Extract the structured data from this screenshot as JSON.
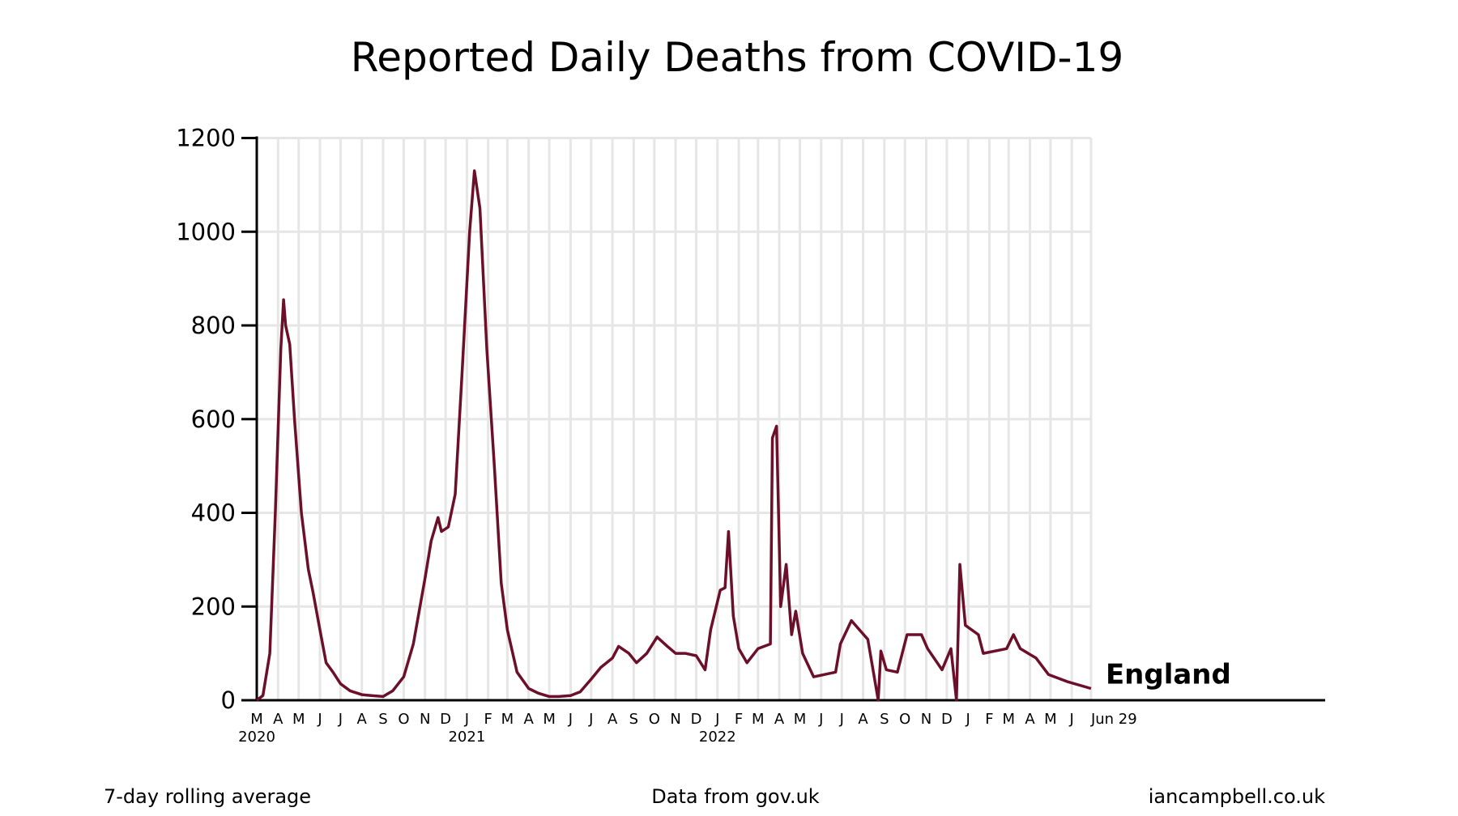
{
  "chart_data": {
    "type": "line",
    "title": "Reported Daily Deaths from COVID-19",
    "series": [
      {
        "name": "England",
        "color": "#6b0f2a",
        "x": [
          "2020-03-01",
          "2020-03-10",
          "2020-03-20",
          "2020-03-28",
          "2020-04-05",
          "2020-04-09",
          "2020-04-12",
          "2020-04-18",
          "2020-04-25",
          "2020-05-05",
          "2020-05-15",
          "2020-05-22",
          "2020-06-01",
          "2020-06-10",
          "2020-06-20",
          "2020-07-01",
          "2020-07-15",
          "2020-08-01",
          "2020-08-15",
          "2020-09-01",
          "2020-09-15",
          "2020-10-01",
          "2020-10-15",
          "2020-11-01",
          "2020-11-10",
          "2020-11-20",
          "2020-11-25",
          "2020-12-05",
          "2020-12-15",
          "2020-12-25",
          "2021-01-05",
          "2021-01-12",
          "2021-01-20",
          "2021-01-30",
          "2021-02-10",
          "2021-02-20",
          "2021-03-01",
          "2021-03-15",
          "2021-04-01",
          "2021-04-15",
          "2021-05-01",
          "2021-05-15",
          "2021-06-01",
          "2021-06-15",
          "2021-07-01",
          "2021-07-15",
          "2021-08-01",
          "2021-08-10",
          "2021-08-25",
          "2021-09-05",
          "2021-09-20",
          "2021-10-05",
          "2021-10-20",
          "2021-11-01",
          "2021-11-15",
          "2021-12-01",
          "2021-12-14",
          "2021-12-22",
          "2022-01-05",
          "2022-01-12",
          "2022-01-17",
          "2022-01-24",
          "2022-02-01",
          "2022-02-13",
          "2022-03-01",
          "2022-03-19",
          "2022-03-22",
          "2022-03-28",
          "2022-04-03",
          "2022-04-11",
          "2022-04-19",
          "2022-04-25",
          "2022-05-05",
          "2022-05-21",
          "2022-06-22",
          "2022-06-29",
          "2022-07-15",
          "2022-08-08",
          "2022-08-23",
          "2022-08-27",
          "2022-09-04",
          "2022-09-20",
          "2022-10-04",
          "2022-10-25",
          "2022-11-03",
          "2022-11-24",
          "2022-12-07",
          "2022-12-15",
          "2022-12-20",
          "2022-12-28",
          "2023-01-16",
          "2023-01-23",
          "2023-02-26",
          "2023-03-08",
          "2023-03-18",
          "2023-04-10",
          "2023-04-28",
          "2023-05-25",
          "2023-06-29"
        ],
        "values": [
          0,
          10,
          100,
          400,
          750,
          855,
          800,
          760,
          600,
          400,
          280,
          230,
          150,
          80,
          60,
          35,
          20,
          12,
          10,
          8,
          20,
          50,
          120,
          260,
          340,
          390,
          360,
          370,
          440,
          700,
          1000,
          1130,
          1050,
          750,
          500,
          250,
          150,
          60,
          25,
          15,
          8,
          8,
          10,
          18,
          45,
          70,
          90,
          115,
          100,
          80,
          100,
          135,
          115,
          100,
          100,
          95,
          65,
          150,
          235,
          240,
          360,
          180,
          110,
          80,
          110,
          120,
          560,
          585,
          200,
          290,
          140,
          190,
          100,
          50,
          60,
          120,
          170,
          130,
          0,
          105,
          65,
          60,
          140,
          140,
          110,
          65,
          110,
          0,
          290,
          160,
          140,
          100,
          110,
          140,
          110,
          90,
          55,
          40,
          25
        ]
      }
    ],
    "xlim": [
      "2020-03-01",
      "2024-06-04"
    ],
    "xticks": [
      {
        "value": "2020-03-01",
        "label": "M"
      },
      {
        "value": "2020-04-01",
        "label": "A"
      },
      {
        "value": "2020-05-01",
        "label": "M"
      },
      {
        "value": "2020-06-01",
        "label": "J"
      },
      {
        "value": "2020-07-01",
        "label": "J"
      },
      {
        "value": "2020-08-01",
        "label": "A"
      },
      {
        "value": "2020-09-01",
        "label": "S"
      },
      {
        "value": "2020-10-01",
        "label": "O"
      },
      {
        "value": "2020-11-01",
        "label": "N"
      },
      {
        "value": "2020-12-01",
        "label": "D"
      },
      {
        "value": "2021-01-01",
        "label": "J"
      },
      {
        "value": "2021-02-01",
        "label": "F"
      },
      {
        "value": "2021-03-01",
        "label": "M"
      },
      {
        "value": "2021-04-01",
        "label": "A"
      },
      {
        "value": "2021-05-01",
        "label": "M"
      },
      {
        "value": "2021-06-01",
        "label": "J"
      },
      {
        "value": "2021-07-01",
        "label": "J"
      },
      {
        "value": "2021-08-01",
        "label": "A"
      },
      {
        "value": "2021-09-01",
        "label": "S"
      },
      {
        "value": "2021-10-01",
        "label": "O"
      },
      {
        "value": "2021-11-01",
        "label": "N"
      },
      {
        "value": "2021-12-01",
        "label": "D"
      },
      {
        "value": "2022-01-01",
        "label": "J"
      },
      {
        "value": "2022-02-01",
        "label": "F"
      },
      {
        "value": "2022-03-01",
        "label": "M"
      },
      {
        "value": "2022-04-01",
        "label": "A"
      },
      {
        "value": "2022-05-01",
        "label": "M"
      },
      {
        "value": "2022-06-01",
        "label": "J"
      },
      {
        "value": "2022-07-01",
        "label": "J"
      },
      {
        "value": "2022-08-01",
        "label": "A"
      },
      {
        "value": "2022-09-01",
        "label": "S"
      },
      {
        "value": "2022-10-01",
        "label": "O"
      },
      {
        "value": "2022-11-01",
        "label": "N"
      },
      {
        "value": "2022-12-01",
        "label": "D"
      },
      {
        "value": "2023-01-01",
        "label": "J"
      },
      {
        "value": "2023-02-01",
        "label": "F"
      },
      {
        "value": "2023-03-01",
        "label": "M"
      },
      {
        "value": "2023-04-01",
        "label": "A"
      },
      {
        "value": "2023-05-01",
        "label": "M"
      },
      {
        "value": "2023-06-01",
        "label": "J"
      },
      {
        "value": "2023-06-29",
        "label": "Jun 29"
      }
    ],
    "year_labels": [
      {
        "value": "2020-03-01",
        "label": "2020"
      },
      {
        "value": "2021-01-01",
        "label": "2021"
      },
      {
        "value": "2022-01-01",
        "label": "2022"
      }
    ],
    "ylim": [
      0,
      1200
    ],
    "yticks": [
      0,
      200,
      400,
      600,
      800,
      1000,
      1200
    ],
    "grid": true,
    "footer": {
      "left": "7-day rolling average",
      "center": "Data from gov.uk",
      "right": "iancampbell.co.uk"
    }
  }
}
